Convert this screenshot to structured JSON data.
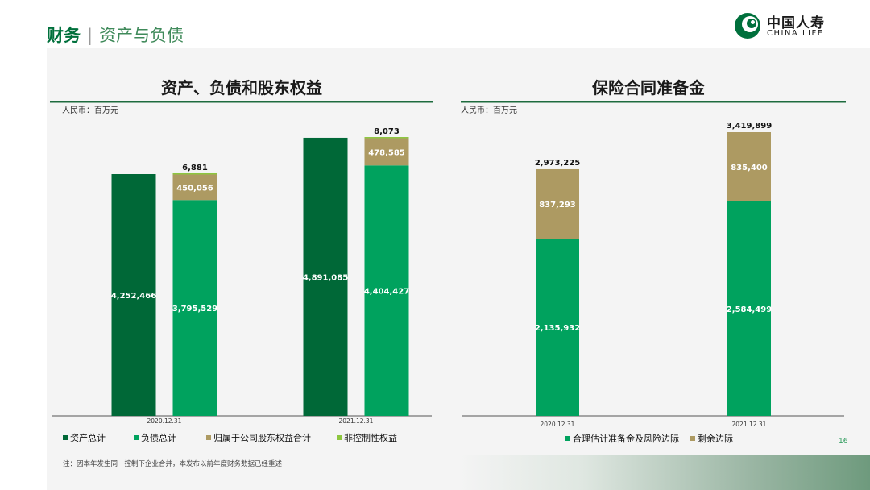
{
  "header": {
    "title": "财务",
    "separator": "|",
    "subtitle": "资产与负债"
  },
  "logo": {
    "cn": "中国人寿",
    "en": "CHINA LIFE"
  },
  "colors": {
    "dark_green": "#006837",
    "green": "#00a25e",
    "tan": "#ad9a62",
    "light_green": "#8dc63f",
    "rule": "#1e6b3e"
  },
  "note": "注：因本年发生同一控制下企业合并，本发布以前年度财务数据已经重述",
  "page_number": "16",
  "chart_data": [
    {
      "type": "bar",
      "stacked": true,
      "title": "资产、负债和股东权益",
      "unit": "人民币：百万元",
      "categories": [
        "2020.12.31",
        "2021.12.31"
      ],
      "legend_position": "bottom",
      "series": [
        {
          "name": "资产总计",
          "color": "#006837",
          "group": "assets",
          "values": [
            4252466,
            4891085
          ],
          "labels": [
            "4,252,466",
            "4,891,085"
          ]
        },
        {
          "name": "负债总计",
          "color": "#00a25e",
          "group": "liabilities_equity",
          "values": [
            3795529,
            4404427
          ],
          "labels": [
            "3,795,529",
            "4,404,427"
          ]
        },
        {
          "name": "归属于公司股东权益合计",
          "color": "#ad9a62",
          "group": "liabilities_equity",
          "values": [
            450056,
            478585
          ],
          "labels": [
            "450,056",
            "478,585"
          ]
        },
        {
          "name": "非控制性权益",
          "color": "#8dc63f",
          "group": "liabilities_equity",
          "values": [
            6881,
            8073
          ],
          "labels": [
            "6,881",
            "8,073"
          ]
        }
      ]
    },
    {
      "type": "bar",
      "stacked": true,
      "title": "保险合同准备金",
      "unit": "人民币：百万元",
      "categories": [
        "2020.12.31",
        "2021.12.31"
      ],
      "legend_position": "bottom",
      "totals": [
        2973225,
        3419899
      ],
      "total_labels": [
        "2,973,225",
        "3,419,899"
      ],
      "series": [
        {
          "name": "合理估计准备金及风险边际",
          "color": "#00a25e",
          "values": [
            2135932,
            2584499
          ],
          "labels": [
            "2,135,932",
            "2,584,499"
          ]
        },
        {
          "name": "剩余边际",
          "color": "#ad9a62",
          "values": [
            837293,
            835400
          ],
          "labels": [
            "837,293",
            "835,400"
          ]
        }
      ]
    }
  ]
}
